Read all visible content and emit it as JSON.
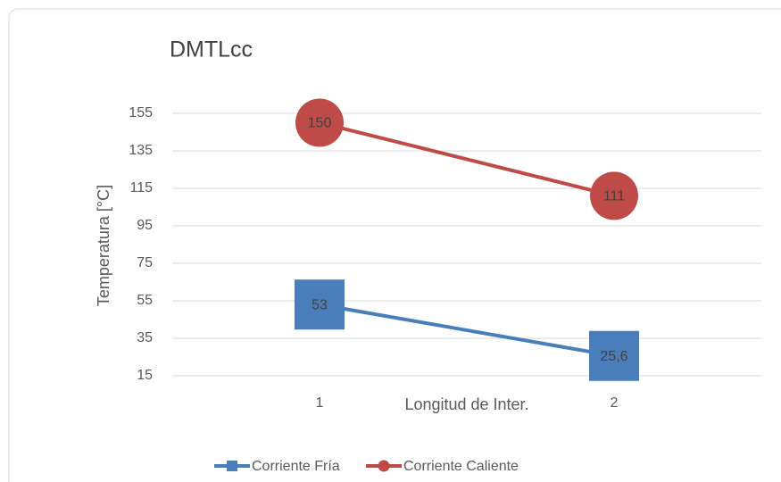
{
  "chart_data": {
    "type": "line",
    "title": "DMTLcc",
    "x_label": "Longitud de Inter.",
    "y_label": "Temperatura [°C]",
    "categories": [
      "1",
      "2"
    ],
    "series": [
      {
        "name": "Corriente Fría",
        "color": "#4a7ebb",
        "marker": "square",
        "values": [
          53,
          25.6
        ],
        "value_labels": [
          "53",
          "25,6"
        ]
      },
      {
        "name": "Corriente Caliente",
        "color": "#be4b48",
        "marker": "circle",
        "values": [
          150,
          111
        ],
        "value_labels": [
          "150",
          "111"
        ]
      }
    ],
    "ylim": [
      15,
      155
    ],
    "yticks": [
      15,
      35,
      55,
      75,
      95,
      115,
      135,
      155
    ],
    "grid": true,
    "legend": "bottom"
  }
}
